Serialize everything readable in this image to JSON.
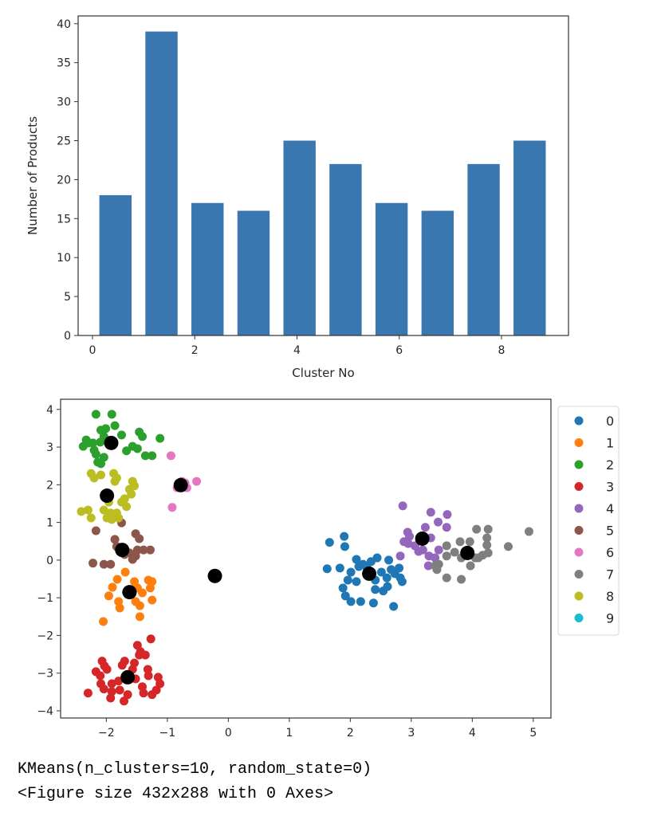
{
  "colors": {
    "bar": "#3a76af",
    "axis": "#333333",
    "centroid": "#000000",
    "palette": [
      "#1f77b4",
      "#ff7f0e",
      "#2ca02c",
      "#d62728",
      "#9467bd",
      "#8c564b",
      "#e377c2",
      "#7f7f7f",
      "#bcbd22",
      "#17becf"
    ]
  },
  "chart_data": [
    {
      "type": "bar",
      "subtype": "histogram",
      "title": "",
      "xlabel": "Cluster No",
      "ylabel": "Number of Products",
      "bin_edges": [
        0,
        0.9,
        1.8,
        2.7,
        3.6,
        4.5,
        5.4,
        6.3,
        7.2,
        8.1,
        9.0
      ],
      "values": [
        18,
        39,
        17,
        16,
        25,
        22,
        17,
        16,
        22,
        25
      ],
      "rwidth": 0.7,
      "xlim": [
        -0.28,
        9.31
      ],
      "ylim": [
        0,
        41
      ],
      "xticks": [
        0,
        2,
        4,
        6,
        8
      ],
      "xtick_labels": [
        "0",
        "2",
        "4",
        "6",
        "8"
      ],
      "yticks": [
        0,
        5,
        10,
        15,
        20,
        25,
        30,
        35,
        40
      ],
      "ytick_labels": [
        "0",
        "5",
        "10",
        "15",
        "20",
        "25",
        "30",
        "35",
        "40"
      ],
      "grid": false
    },
    {
      "type": "scatter",
      "title": "",
      "xlabel": "",
      "ylabel": "",
      "xlim": [
        -2.75,
        5.29
      ],
      "ylim": [
        -4.19,
        4.27
      ],
      "xticks": [
        -2,
        -1,
        0,
        1,
        2,
        3,
        4,
        5
      ],
      "xtick_labels": [
        "−2",
        "−1",
        "0",
        "1",
        "2",
        "3",
        "4",
        "5"
      ],
      "yticks": [
        -4,
        -3,
        -2,
        -1,
        0,
        1,
        2,
        3,
        4
      ],
      "ytick_labels": [
        "−4",
        "−3",
        "−2",
        "−1",
        "0",
        "1",
        "2",
        "3",
        "4"
      ],
      "grid": false,
      "legend_position": "outside-right-top",
      "series": [
        {
          "name": "0",
          "points": [
            [
              1.66,
              0.47
            ],
            [
              1.9,
              0.63
            ],
            [
              1.91,
              0.36
            ],
            [
              1.62,
              -0.23
            ],
            [
              1.83,
              -0.21
            ],
            [
              2.1,
              0.02
            ],
            [
              2.44,
              0.06
            ],
            [
              2.63,
              0.0
            ],
            [
              2.14,
              -0.17
            ],
            [
              2.27,
              -0.19
            ],
            [
              2.01,
              -0.32
            ],
            [
              1.96,
              -0.53
            ],
            [
              1.88,
              -0.74
            ],
            [
              1.92,
              -0.95
            ],
            [
              2.01,
              -1.1
            ],
            [
              2.17,
              -1.1
            ],
            [
              2.38,
              -1.14
            ],
            [
              2.71,
              -1.23
            ],
            [
              2.41,
              -0.78
            ],
            [
              2.54,
              -0.82
            ],
            [
              2.61,
              -0.7
            ],
            [
              2.8,
              -0.21
            ],
            [
              2.82,
              -0.47
            ],
            [
              2.85,
              -0.57
            ],
            [
              2.73,
              -0.36
            ],
            [
              2.51,
              -0.32
            ],
            [
              2.6,
              -0.47
            ],
            [
              2.1,
              -0.57
            ],
            [
              2.21,
              -0.11
            ],
            [
              2.34,
              -0.04
            ],
            [
              2.67,
              -0.25
            ],
            [
              2.41,
              -0.53
            ]
          ]
        },
        {
          "name": "1",
          "points": [
            [
              -1.69,
              -0.32
            ],
            [
              -1.82,
              -0.51
            ],
            [
              -1.9,
              -0.72
            ],
            [
              -1.96,
              -0.95
            ],
            [
              -1.54,
              -0.57
            ],
            [
              -1.49,
              -0.74
            ],
            [
              -1.41,
              -0.87
            ],
            [
              -1.31,
              -0.53
            ],
            [
              -1.25,
              -0.57
            ],
            [
              -1.28,
              -0.74
            ],
            [
              -1.25,
              -1.06
            ],
            [
              -1.8,
              -1.1
            ],
            [
              -1.78,
              -1.27
            ],
            [
              -1.52,
              -1.1
            ],
            [
              -1.45,
              -1.21
            ],
            [
              -2.05,
              -1.63
            ],
            [
              -1.45,
              -1.5
            ],
            [
              -1.58,
              -0.89
            ],
            [
              -1.67,
              -0.85
            ]
          ]
        },
        {
          "name": "2",
          "points": [
            [
              -2.17,
              3.87
            ],
            [
              -1.91,
              3.87
            ],
            [
              -2.09,
              3.45
            ],
            [
              -2.01,
              3.49
            ],
            [
              -1.86,
              3.57
            ],
            [
              -1.75,
              3.32
            ],
            [
              -2.33,
              3.19
            ],
            [
              -2.38,
              3.02
            ],
            [
              -2.22,
              3.11
            ],
            [
              -2.1,
              3.13
            ],
            [
              -2.17,
              2.81
            ],
            [
              -2.04,
              2.73
            ],
            [
              -2.14,
              2.6
            ],
            [
              -2.09,
              2.56
            ],
            [
              -2.04,
              3.28
            ],
            [
              -1.46,
              3.4
            ],
            [
              -1.41,
              3.28
            ],
            [
              -1.12,
              3.23
            ],
            [
              -1.67,
              2.9
            ],
            [
              -1.57,
              3.02
            ],
            [
              -1.49,
              2.96
            ],
            [
              -1.36,
              2.77
            ],
            [
              -1.25,
              2.77
            ],
            [
              -2.29,
              3.11
            ],
            [
              -2.2,
              2.92
            ]
          ]
        },
        {
          "name": "3",
          "points": [
            [
              -1.27,
              -2.09
            ],
            [
              -1.49,
              -2.26
            ],
            [
              -1.44,
              -2.43
            ],
            [
              -1.46,
              -2.52
            ],
            [
              -1.36,
              -2.52
            ],
            [
              -1.7,
              -2.68
            ],
            [
              -1.74,
              -2.79
            ],
            [
              -2.07,
              -2.68
            ],
            [
              -2.03,
              -2.81
            ],
            [
              -1.99,
              -2.9
            ],
            [
              -2.17,
              -2.96
            ],
            [
              -2.1,
              -3.07
            ],
            [
              -2.09,
              -3.28
            ],
            [
              -2.04,
              -3.42
            ],
            [
              -1.91,
              -3.28
            ],
            [
              -1.8,
              -3.21
            ],
            [
              -1.54,
              -2.73
            ],
            [
              -1.57,
              -2.9
            ],
            [
              -1.32,
              -2.9
            ],
            [
              -1.31,
              -3.07
            ],
            [
              -1.15,
              -3.11
            ],
            [
              -1.12,
              -3.28
            ],
            [
              -1.18,
              -3.45
            ],
            [
              -1.41,
              -3.36
            ],
            [
              -1.39,
              -3.53
            ],
            [
              -1.65,
              -3.57
            ],
            [
              -1.71,
              -3.74
            ],
            [
              -1.93,
              -3.66
            ],
            [
              -1.91,
              -3.49
            ],
            [
              -2.3,
              -3.53
            ],
            [
              -1.78,
              -3.45
            ],
            [
              -1.52,
              -3.15
            ],
            [
              -1.25,
              -3.57
            ]
          ]
        },
        {
          "name": "4",
          "points": [
            [
              2.86,
              1.44
            ],
            [
              3.32,
              1.27
            ],
            [
              3.59,
              1.21
            ],
            [
              3.44,
              1.01
            ],
            [
              3.58,
              0.87
            ],
            [
              3.23,
              0.87
            ],
            [
              2.94,
              0.74
            ],
            [
              2.88,
              0.49
            ],
            [
              2.95,
              0.44
            ],
            [
              3.06,
              0.38
            ],
            [
              3.19,
              0.27
            ],
            [
              3.29,
              0.11
            ],
            [
              3.39,
              0.06
            ],
            [
              3.45,
              0.27
            ],
            [
              3.32,
              0.59
            ],
            [
              2.82,
              0.11
            ],
            [
              3.28,
              -0.15
            ],
            [
              3.12,
              0.23
            ],
            [
              2.97,
              0.63
            ]
          ]
        },
        {
          "name": "5",
          "points": [
            [
              -1.75,
              0.99
            ],
            [
              -2.17,
              0.78
            ],
            [
              -1.86,
              0.55
            ],
            [
              -1.52,
              0.7
            ],
            [
              -1.46,
              0.57
            ],
            [
              -1.49,
              0.27
            ],
            [
              -1.39,
              0.27
            ],
            [
              -1.28,
              0.27
            ],
            [
              -1.83,
              0.36
            ],
            [
              -1.7,
              0.15
            ],
            [
              -1.62,
              0.19
            ],
            [
              -2.22,
              -0.08
            ],
            [
              -2.04,
              -0.11
            ],
            [
              -1.93,
              -0.11
            ],
            [
              -1.57,
              0.02
            ],
            [
              -1.52,
              0.11
            ]
          ]
        },
        {
          "name": "6",
          "points": [
            [
              -0.94,
              2.77
            ],
            [
              -0.52,
              2.09
            ],
            [
              -0.76,
              2.09
            ],
            [
              -0.84,
              1.92
            ],
            [
              -0.68,
              1.92
            ],
            [
              -0.92,
              1.4
            ],
            [
              -0.71,
              2.05
            ]
          ]
        },
        {
          "name": "7",
          "points": [
            [
              4.07,
              0.82
            ],
            [
              4.26,
              0.82
            ],
            [
              3.96,
              0.49
            ],
            [
              4.24,
              0.59
            ],
            [
              4.24,
              0.4
            ],
            [
              3.8,
              0.49
            ],
            [
              3.58,
              0.38
            ],
            [
              4.59,
              0.36
            ],
            [
              4.93,
              0.76
            ],
            [
              4.26,
              0.19
            ],
            [
              3.58,
              0.11
            ],
            [
              3.71,
              0.21
            ],
            [
              3.82,
              0.06
            ],
            [
              4.1,
              0.06
            ],
            [
              3.97,
              -0.15
            ],
            [
              3.45,
              -0.11
            ],
            [
              3.42,
              -0.25
            ],
            [
              3.82,
              -0.51
            ],
            [
              3.58,
              -0.47
            ],
            [
              3.39,
              -0.15
            ],
            [
              3.91,
              0.17
            ],
            [
              4.05,
              0.06
            ],
            [
              4.17,
              0.13
            ]
          ]
        },
        {
          "name": "8",
          "points": [
            [
              -2.25,
              2.3
            ],
            [
              -2.2,
              2.18
            ],
            [
              -2.09,
              2.26
            ],
            [
              -1.88,
              2.3
            ],
            [
              -1.83,
              2.18
            ],
            [
              -1.86,
              2.09
            ],
            [
              -1.57,
              2.09
            ],
            [
              -1.54,
              1.97
            ],
            [
              -1.62,
              1.88
            ],
            [
              -1.59,
              1.75
            ],
            [
              -1.96,
              1.54
            ],
            [
              -1.75,
              1.54
            ],
            [
              -1.7,
              1.63
            ],
            [
              -1.67,
              1.42
            ],
            [
              -2.41,
              1.29
            ],
            [
              -2.3,
              1.33
            ],
            [
              -2.25,
              1.12
            ],
            [
              -2.04,
              1.33
            ],
            [
              -1.99,
              1.12
            ],
            [
              -1.93,
              1.25
            ],
            [
              -1.91,
              1.08
            ],
            [
              -1.83,
              1.25
            ],
            [
              -1.8,
              1.12
            ]
          ]
        },
        {
          "name": "9",
          "points": [
            [
              -0.22,
              -0.42
            ]
          ]
        }
      ],
      "centroids": [
        [
          2.31,
          -0.36
        ],
        [
          -1.62,
          -0.85
        ],
        [
          -1.92,
          3.11
        ],
        [
          -1.65,
          -3.11
        ],
        [
          3.18,
          0.57
        ],
        [
          -1.74,
          0.27
        ],
        [
          -0.78,
          1.99
        ],
        [
          3.92,
          0.19
        ],
        [
          -1.99,
          1.71
        ],
        [
          -0.22,
          -0.42
        ]
      ],
      "legend": [
        "0",
        "1",
        "2",
        "3",
        "4",
        "5",
        "6",
        "7",
        "8",
        "9"
      ]
    }
  ],
  "output": {
    "line1": "KMeans(n_clusters=10, random_state=0)",
    "line2": "<Figure size 432x288 with 0 Axes>"
  }
}
